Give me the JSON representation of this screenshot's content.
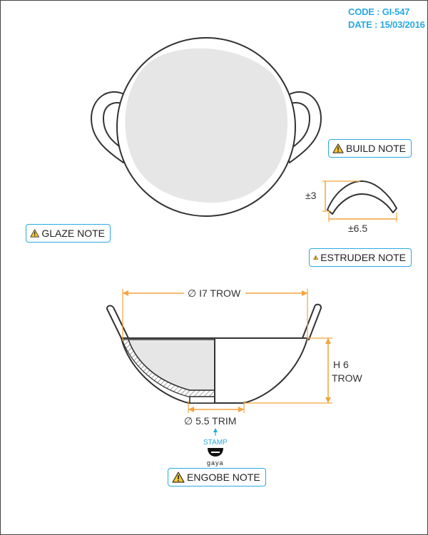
{
  "meta": {
    "code": "CODE : GI-547",
    "date": "DATE : 15/03/2016"
  },
  "notes": {
    "build": "BUILD NOTE",
    "glaze": "GLAZE NOTE",
    "estruder": "ESTRUDER NOTE",
    "engobe": "ENGOBE NOTE"
  },
  "dimensions": {
    "profile_height": "±3",
    "profile_width": "±6.5",
    "diameter": "∅ I7 TROW",
    "height_line1": "H 6",
    "height_line2": "TROW",
    "foot": "∅ 5.5 TRIM"
  },
  "stamp": {
    "label": "STAMP",
    "brand": "gaya"
  },
  "colors": {
    "accent": "#29a9e1",
    "dimension": "#f4a33b",
    "stroke": "#333333",
    "fill": "#e6e6e6"
  }
}
